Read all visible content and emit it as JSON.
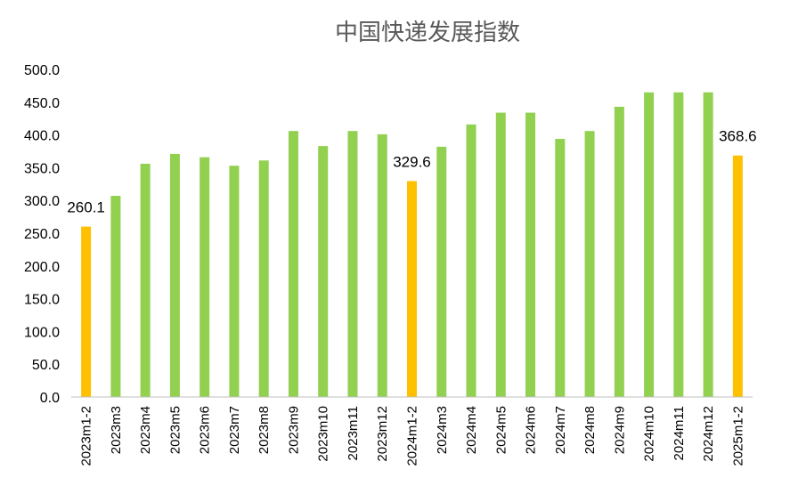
{
  "chart_data": {
    "type": "bar",
    "title": "中国快递发展指数",
    "xlabel": "",
    "ylabel": "",
    "ylim": [
      0,
      500
    ],
    "yticks": [
      "0.0",
      "50.0",
      "100.0",
      "150.0",
      "200.0",
      "250.0",
      "300.0",
      "350.0",
      "400.0",
      "450.0",
      "500.0"
    ],
    "grid": false,
    "legend": "none",
    "categories": [
      "2023m1-2",
      "2023m3",
      "2023m4",
      "2023m5",
      "2023m6",
      "2023m7",
      "2023m8",
      "2023m9",
      "2023m10",
      "2023m11",
      "2023m12",
      "2024m1-2",
      "2024m3",
      "2024m4",
      "2024m5",
      "2024m6",
      "2024m7",
      "2024m8",
      "2024m9",
      "2024m10",
      "2024m11",
      "2024m12",
      "2025m1-2"
    ],
    "values": [
      260.1,
      307,
      356,
      371,
      366,
      353,
      361,
      406,
      383,
      406,
      401,
      329.6,
      382,
      416,
      434,
      434,
      394,
      406,
      443,
      465,
      465,
      465,
      368.6
    ],
    "highlighted": [
      "2023m1-2",
      "2024m1-2",
      "2025m1-2"
    ],
    "data_labels": [
      {
        "category": "2023m1-2",
        "text": "260.1"
      },
      {
        "category": "2024m1-2",
        "text": "329.6"
      },
      {
        "category": "2025m1-2",
        "text": "368.6"
      }
    ],
    "colors": {
      "default_bar": "#92d050",
      "highlight_bar": "#ffc000",
      "axis": "#bfbfbf",
      "title": "#595959"
    }
  }
}
